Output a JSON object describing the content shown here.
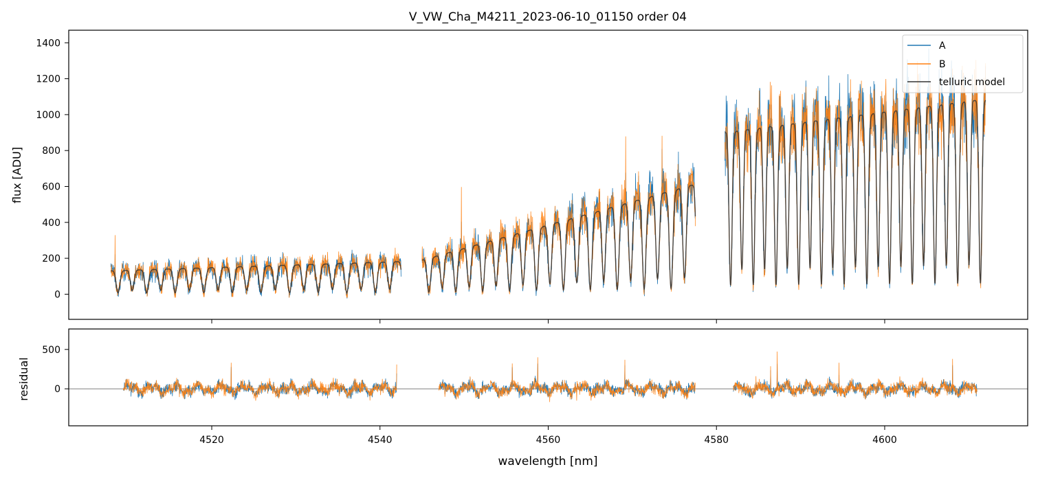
{
  "chart_data": [
    {
      "type": "line",
      "panel": "top",
      "title": "V_VW_Cha_M4211_2023-06-10_01150  order 04",
      "xlabel": "",
      "ylabel": "flux [ADU]",
      "xlim": [
        4503,
        4617
      ],
      "ylim": [
        -140,
        1470
      ],
      "yticks": [
        0,
        200,
        400,
        600,
        800,
        1000,
        1200,
        1400
      ],
      "xticks": [
        4520,
        4540,
        4560,
        4580,
        4600
      ],
      "legend_position": "top-right",
      "segments": [
        {
          "x0": 4508,
          "x1": 4542.5,
          "base": 130,
          "slope": 1.5,
          "lineStep": 1.7
        },
        {
          "x0": 4545,
          "x1": 4577.5,
          "base": 190,
          "slope": 13,
          "lineStep": 1.6
        },
        {
          "x0": 4581,
          "x1": 4612,
          "base": 900,
          "slope": 6,
          "lineStep": 1.35
        }
      ],
      "series": [
        {
          "name": "A",
          "color": "#1f77b4"
        },
        {
          "name": "B",
          "color": "#ff7f0e"
        },
        {
          "name": "telluric model",
          "color": "#333333"
        }
      ]
    },
    {
      "type": "line",
      "panel": "bottom",
      "xlabel": "wavelength [nm]",
      "ylabel": "residual",
      "xlim": [
        4503,
        4617
      ],
      "ylim": [
        -470,
        760
      ],
      "yticks": [
        0,
        500
      ],
      "xticks": [
        4520,
        4540,
        4560,
        4580,
        4600
      ],
      "segments": [
        {
          "x0": 4509.5,
          "x1": 4542
        },
        {
          "x0": 4547,
          "x1": 4577.5
        },
        {
          "x0": 4582,
          "x1": 4611
        }
      ],
      "series": [
        {
          "name": "A",
          "color": "#1f77b4"
        },
        {
          "name": "B",
          "color": "#ff7f0e"
        }
      ]
    }
  ]
}
